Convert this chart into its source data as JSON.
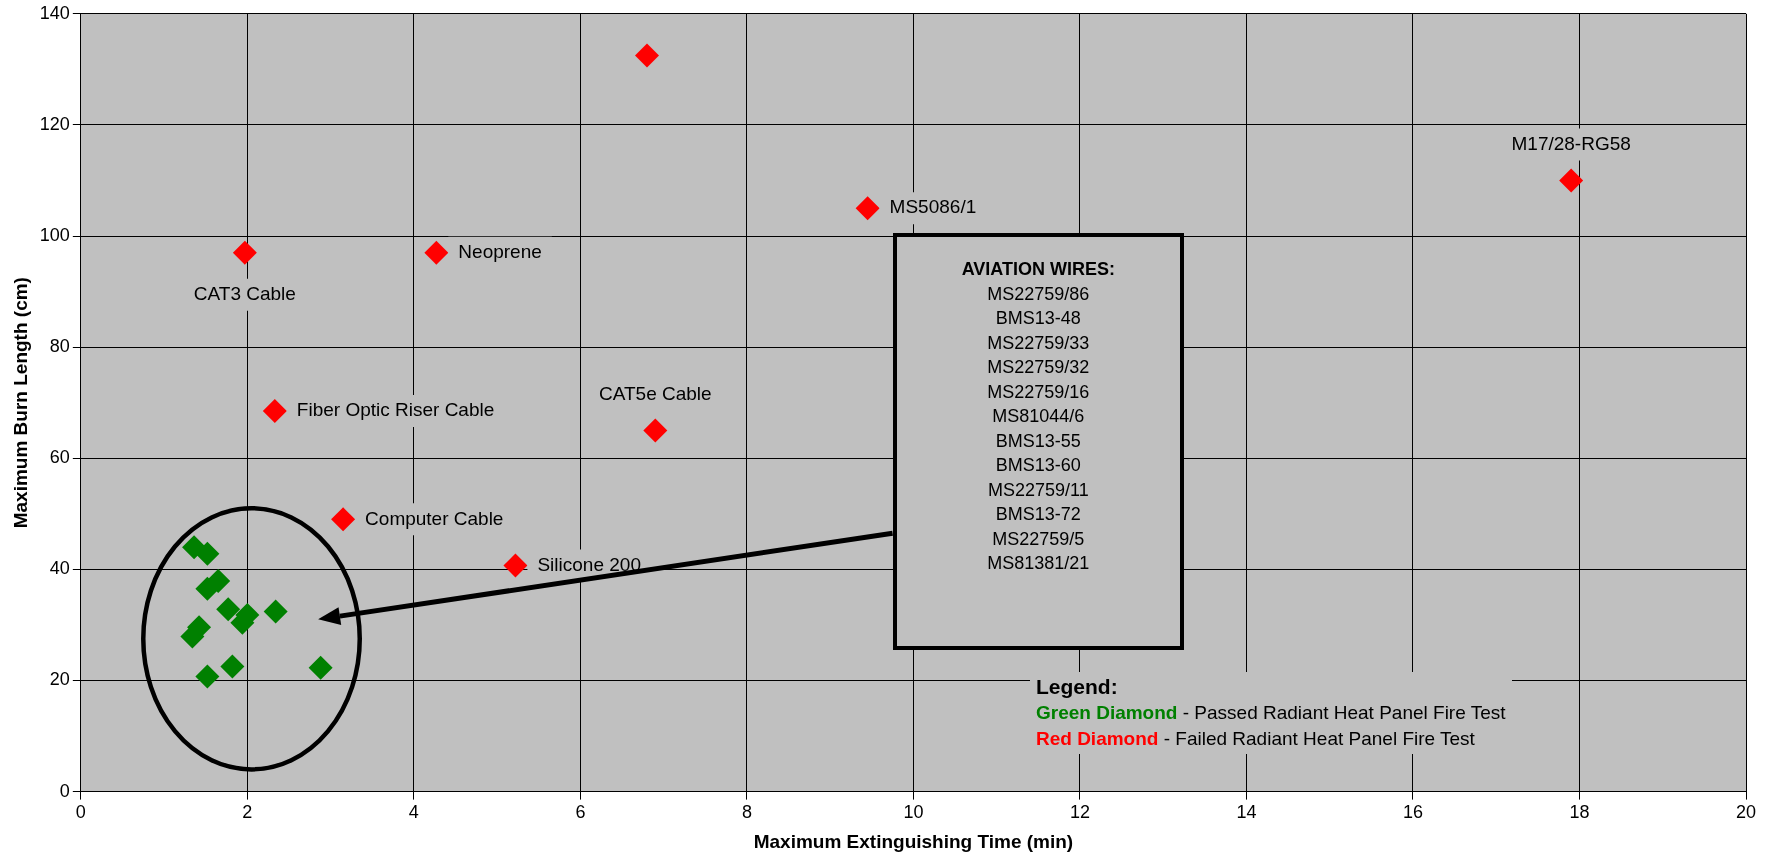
{
  "chart_data": {
    "type": "scatter",
    "xlabel": "Maximum Extinguishing Time (min)",
    "ylabel": "Maximum Burn Length (cm)",
    "xlim": [
      0,
      20
    ],
    "xticks": [
      0,
      2,
      4,
      6,
      8,
      10,
      12,
      14,
      16,
      18,
      20
    ],
    "ylim": [
      0,
      140
    ],
    "yticks": [
      0,
      20,
      40,
      60,
      80,
      100,
      120,
      140
    ],
    "grid": true,
    "marker": "diamond",
    "series": [
      {
        "color": "#008000",
        "x": [
          1.36,
          1.52,
          1.65,
          1.52,
          1.77,
          2.0,
          1.94,
          2.34,
          1.42,
          1.34,
          1.82,
          1.52,
          2.88
        ],
        "values": [
          44.0,
          42.8,
          37.9,
          36.5,
          32.8,
          31.8,
          30.4,
          32.4,
          29.6,
          27.9,
          22.5,
          20.7,
          22.3
        ]
      },
      {
        "color": "#ff0000",
        "x": [
          6.8,
          17.9,
          9.45,
          1.97,
          4.27,
          2.33,
          6.9,
          3.15,
          5.22
        ],
        "values": [
          132.5,
          110,
          105,
          97,
          97,
          68.5,
          65,
          49,
          40.7
        ]
      }
    ],
    "annotations": [
      {
        "text": "M17/28-RG58",
        "x": 17.9,
        "y": 110
      },
      {
        "text": "MS5086/1",
        "x": 9.45,
        "y": 105
      },
      {
        "text": "CAT3 Cable",
        "x": 1.97,
        "y": 97
      },
      {
        "text": "Neoprene",
        "x": 4.27,
        "y": 97
      },
      {
        "text": "Fiber Optic Riser Cable",
        "x": 2.33,
        "y": 68.5
      },
      {
        "text": "CAT5e Cable",
        "x": 6.9,
        "y": 65
      },
      {
        "text": "Computer Cable",
        "x": 3.15,
        "y": 49
      },
      {
        "text": "Silicone 200",
        "x": 5.22,
        "y": 40.7
      },
      "AVIATION WIRES:\nMS22759/86\nBMS13-48\nMS22759/33\nMS22759/32\nMS22759/16\nMS81044/6\nBMS13-55\nBMS13-60\nMS22759/11\nBMS13-72\nMS22759/5\nMS81381/21",
      "Legend:\nGreen Diamond - Passed Radiant Heat Panel Fire Test\nRed Diamond - Failed Radiant Heat Panel Fire Test"
    ]
  }
}
